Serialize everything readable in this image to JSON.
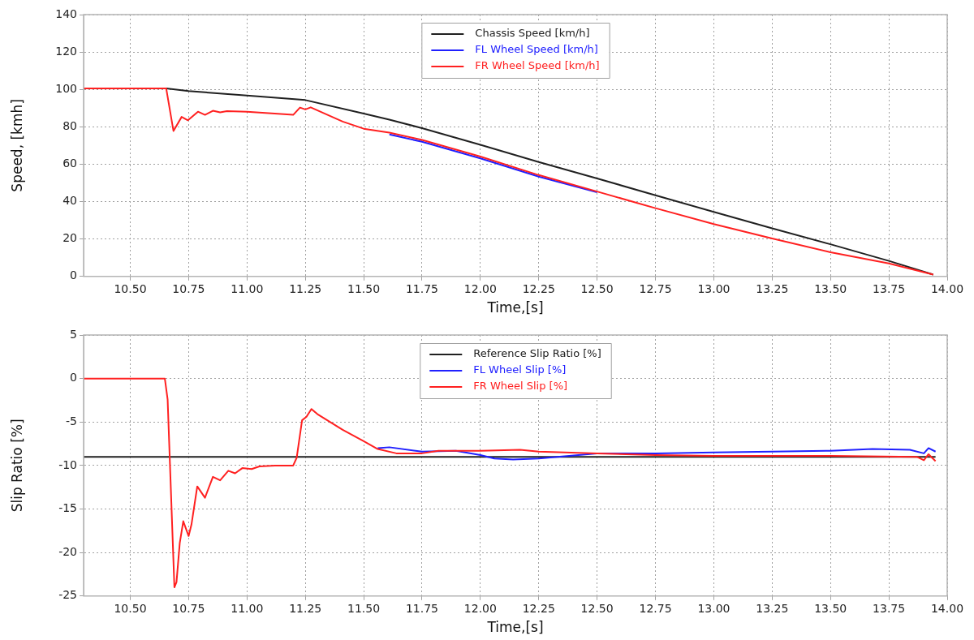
{
  "chart_data": [
    {
      "type": "line",
      "xlabel": "Time,[s]",
      "ylabel": "Speed, [kmh]",
      "xlim": [
        10.3,
        14.0
      ],
      "ylim": [
        0,
        140
      ],
      "xticks": [
        {
          "value": 10.5,
          "label": "10.50"
        },
        {
          "value": 10.75,
          "label": "10.75"
        },
        {
          "value": 11,
          "label": "11.00"
        },
        {
          "value": 11.25,
          "label": "11.25"
        },
        {
          "value": 11.5,
          "label": "11.50"
        },
        {
          "value": 11.75,
          "label": "11.75"
        },
        {
          "value": 12,
          "label": "12.00"
        },
        {
          "value": 12.25,
          "label": "12.25"
        },
        {
          "value": 12.5,
          "label": "12.50"
        },
        {
          "value": 12.75,
          "label": "12.75"
        },
        {
          "value": 13,
          "label": "13.00"
        },
        {
          "value": 13.25,
          "label": "13.25"
        },
        {
          "value": 13.5,
          "label": "13.50"
        },
        {
          "value": 13.75,
          "label": "13.75"
        },
        {
          "value": 14,
          "label": "14.00"
        }
      ],
      "yticks": [
        0,
        20,
        40,
        60,
        80,
        100,
        120,
        140
      ],
      "grid": true,
      "legend": "top",
      "marker": "none",
      "line_style": "solid",
      "series": [
        {
          "name": "Chassis Speed [km/h]",
          "color": "#202020",
          "x": [
            10.3,
            10.654,
            10.75,
            11.0,
            11.25,
            11.5,
            11.61,
            11.75,
            12.0,
            12.25,
            12.5,
            12.75,
            13.0,
            13.25,
            13.5,
            13.75,
            13.94
          ],
          "values": [
            100.5,
            100.5,
            99.1,
            96.7,
            94.3,
            87.1,
            83.8,
            79.3,
            70.4,
            61.2,
            52.4,
            43.4,
            34.5,
            25.7,
            17.2,
            8.3,
            1.0
          ]
        },
        {
          "name": "FL Wheel Speed [km/h]",
          "color": "#2020ff",
          "x": [
            11.61,
            11.75,
            12.0,
            12.25,
            12.5
          ],
          "values": [
            75.9,
            72.0,
            63.1,
            53.4,
            45.0
          ]
        },
        {
          "name": "FR Wheel Speed [km/h]",
          "color": "#ff2020",
          "x": [
            10.3,
            10.654,
            10.685,
            10.72,
            10.747,
            10.79,
            10.82,
            10.854,
            10.885,
            10.914,
            11.0,
            11.198,
            11.227,
            11.25,
            11.273,
            11.41,
            11.5,
            11.61,
            11.75,
            12.0,
            12.25,
            12.5,
            12.75,
            13.0,
            13.25,
            13.5,
            13.75,
            13.94
          ],
          "values": [
            100.5,
            100.5,
            77.8,
            85.3,
            83.5,
            88.1,
            86.4,
            88.6,
            87.7,
            88.4,
            88.1,
            86.4,
            90.3,
            89.3,
            90.4,
            82.8,
            79.0,
            76.9,
            73.0,
            64.1,
            54.2,
            45.4,
            36.5,
            28.0,
            20.3,
            12.9,
            7.0,
            1.0
          ]
        }
      ]
    },
    {
      "type": "line",
      "xlabel": "Time,[s]",
      "ylabel": "Slip Ratio [%]",
      "xlim": [
        10.3,
        14.0
      ],
      "ylim": [
        -25,
        5
      ],
      "xticks": [
        {
          "value": 10.5,
          "label": "10.50"
        },
        {
          "value": 10.75,
          "label": "10.75"
        },
        {
          "value": 11,
          "label": "11.00"
        },
        {
          "value": 11.25,
          "label": "11.25"
        },
        {
          "value": 11.5,
          "label": "11.50"
        },
        {
          "value": 11.75,
          "label": "11.75"
        },
        {
          "value": 12,
          "label": "12.00"
        },
        {
          "value": 12.25,
          "label": "12.25"
        },
        {
          "value": 12.5,
          "label": "12.50"
        },
        {
          "value": 12.75,
          "label": "12.75"
        },
        {
          "value": 13,
          "label": "13.00"
        },
        {
          "value": 13.25,
          "label": "13.25"
        },
        {
          "value": 13.5,
          "label": "13.50"
        },
        {
          "value": 13.75,
          "label": "13.75"
        },
        {
          "value": 14,
          "label": "14.00"
        }
      ],
      "yticks": [
        -25,
        -20,
        -15,
        -10,
        -5,
        0,
        5
      ],
      "grid": true,
      "legend": "top",
      "marker": "none",
      "line_style": "solid",
      "series": [
        {
          "name": "Reference Slip Ratio [%]",
          "color": "#202020",
          "x": [
            10.3,
            13.95
          ],
          "values": [
            -9.0,
            -9.0
          ]
        },
        {
          "name": "FL Wheel Slip [%]",
          "color": "#2020ff",
          "x": [
            11.56,
            11.61,
            11.75,
            11.895,
            12.0,
            12.06,
            12.14,
            12.25,
            12.38,
            12.5,
            12.75,
            13.0,
            13.25,
            13.5,
            13.68,
            13.84,
            13.9,
            13.92,
            13.95
          ],
          "values": [
            -8.0,
            -7.9,
            -8.4,
            -8.3,
            -8.8,
            -9.2,
            -9.3,
            -9.2,
            -8.9,
            -8.6,
            -8.6,
            -8.5,
            -8.4,
            -8.3,
            -8.1,
            -8.2,
            -8.6,
            -8.0,
            -8.4
          ]
        },
        {
          "name": "FR Wheel Slip [%]",
          "color": "#ff2020",
          "x": [
            10.3,
            10.648,
            10.66,
            10.689,
            10.698,
            10.712,
            10.727,
            10.75,
            10.762,
            10.787,
            10.82,
            10.854,
            10.885,
            10.92,
            10.949,
            10.98,
            11.02,
            11.053,
            11.12,
            11.198,
            11.213,
            11.236,
            11.255,
            11.276,
            11.302,
            11.41,
            11.5,
            11.56,
            11.64,
            11.69,
            11.75,
            11.82,
            12.0,
            12.17,
            12.25,
            12.5,
            12.75,
            13.0,
            13.25,
            13.5,
            13.87,
            13.9,
            13.92,
            13.95
          ],
          "values": [
            0,
            0,
            -2.4,
            -24.0,
            -23.4,
            -18.9,
            -16.4,
            -18.1,
            -16.8,
            -12.4,
            -13.7,
            -11.3,
            -11.7,
            -10.6,
            -10.9,
            -10.3,
            -10.4,
            -10.1,
            -10.0,
            -10.0,
            -9.1,
            -4.8,
            -4.4,
            -3.5,
            -4.1,
            -5.9,
            -7.2,
            -8.1,
            -8.6,
            -8.6,
            -8.6,
            -8.3,
            -8.3,
            -8.2,
            -8.4,
            -8.6,
            -8.8,
            -8.9,
            -8.9,
            -8.9,
            -9.0,
            -9.4,
            -8.7,
            -9.5
          ]
        }
      ]
    }
  ]
}
